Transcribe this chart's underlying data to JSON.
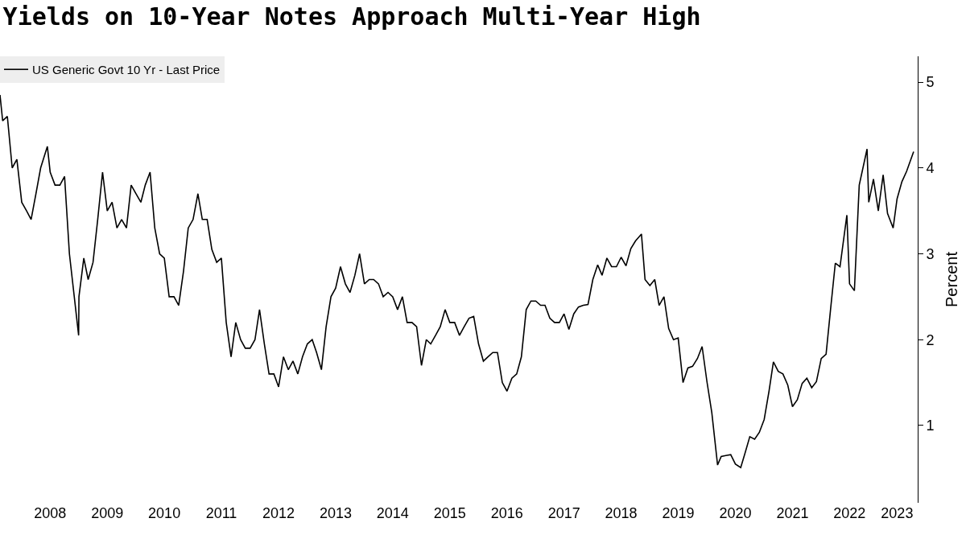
{
  "chart_data": {
    "type": "line",
    "title": "Yields on 10-Year Notes Approach Multi-Year High",
    "ylabel": "Percent",
    "x": [
      "2007-08-15",
      "2007-09",
      "2007-10",
      "2007-11",
      "2007-12",
      "2008-01",
      "2008-02",
      "2008-03",
      "2008-04",
      "2008-05",
      "2008-06-13",
      "2008-07",
      "2008-08",
      "2008-09",
      "2008-10",
      "2008-11",
      "2008-12-30",
      "2009-01",
      "2009-02",
      "2009-03",
      "2009-04",
      "2009-05",
      "2009-06",
      "2009-07",
      "2009-08",
      "2009-09",
      "2009-10",
      "2009-11",
      "2009-12",
      "2010-01",
      "2010-02",
      "2010-03",
      "2010-04",
      "2010-05",
      "2010-06",
      "2010-07",
      "2010-08",
      "2010-09",
      "2010-10",
      "2010-11",
      "2010-12",
      "2011-01",
      "2011-02",
      "2011-03",
      "2011-04",
      "2011-05",
      "2011-06",
      "2011-07",
      "2011-08",
      "2011-09",
      "2011-10",
      "2011-11",
      "2011-12",
      "2012-01",
      "2012-02",
      "2012-03",
      "2012-04",
      "2012-05",
      "2012-06",
      "2012-07",
      "2012-08",
      "2012-09",
      "2012-10",
      "2012-11",
      "2012-12",
      "2013-01",
      "2013-02",
      "2013-03",
      "2013-04",
      "2013-05",
      "2013-06",
      "2013-07",
      "2013-08",
      "2013-09",
      "2013-10",
      "2013-11",
      "2013-12",
      "2014-01",
      "2014-02",
      "2014-03",
      "2014-04",
      "2014-05",
      "2014-06",
      "2014-07",
      "2014-08",
      "2014-09",
      "2014-10",
      "2014-11",
      "2014-12",
      "2015-01",
      "2015-02",
      "2015-03",
      "2015-04",
      "2015-05",
      "2015-06",
      "2015-07",
      "2015-08",
      "2015-09",
      "2015-10",
      "2015-11",
      "2015-12",
      "2016-01",
      "2016-02",
      "2016-03",
      "2016-04",
      "2016-05",
      "2016-06",
      "2016-07",
      "2016-08",
      "2016-09",
      "2016-10",
      "2016-11",
      "2016-12",
      "2017-01",
      "2017-02",
      "2017-03",
      "2017-04",
      "2017-05",
      "2017-06",
      "2017-07",
      "2017-08",
      "2017-09",
      "2017-10",
      "2017-11",
      "2017-12",
      "2018-01",
      "2018-02",
      "2018-03",
      "2018-04",
      "2018-05",
      "2018-06",
      "2018-07",
      "2018-08",
      "2018-09",
      "2018-10",
      "2018-11-08",
      "2018-12",
      "2019-01",
      "2019-02",
      "2019-03",
      "2019-04",
      "2019-05",
      "2019-06",
      "2019-07",
      "2019-08",
      "2019-09",
      "2019-10",
      "2019-11",
      "2019-12",
      "2020-01",
      "2020-02",
      "2020-03-09",
      "2020-04",
      "2020-05",
      "2020-06",
      "2020-07",
      "2020-08-04",
      "2020-09",
      "2020-10",
      "2020-11",
      "2020-12",
      "2021-01",
      "2021-02",
      "2021-03",
      "2021-04",
      "2021-05",
      "2021-06",
      "2021-07",
      "2021-08",
      "2021-09",
      "2021-10",
      "2021-11",
      "2021-12",
      "2022-01",
      "2022-02",
      "2022-03",
      "2022-04",
      "2022-05",
      "2022-06-14",
      "2022-07",
      "2022-08-01",
      "2022-09",
      "2022-10-21",
      "2022-11",
      "2022-12",
      "2023-01",
      "2023-02",
      "2023-03",
      "2023-04-06",
      "2023-05",
      "2023-06",
      "2023-07",
      "2023-08-15"
    ],
    "series": [
      {
        "name": "US Generic Govt 10 Yr - Last Price",
        "color": "#000000",
        "values": [
          4.85,
          4.55,
          4.6,
          4.0,
          4.1,
          3.6,
          3.5,
          3.4,
          3.7,
          4.0,
          4.25,
          3.95,
          3.8,
          3.8,
          3.9,
          3.0,
          2.05,
          2.5,
          2.95,
          2.7,
          2.9,
          3.4,
          3.95,
          3.5,
          3.6,
          3.3,
          3.4,
          3.3,
          3.8,
          3.7,
          3.6,
          3.8,
          3.95,
          3.3,
          3.0,
          2.95,
          2.5,
          2.5,
          2.4,
          2.8,
          3.3,
          3.4,
          3.7,
          3.4,
          3.4,
          3.05,
          2.9,
          2.95,
          2.2,
          1.8,
          2.2,
          2.0,
          1.9,
          1.9,
          2.0,
          2.35,
          1.95,
          1.6,
          1.6,
          1.45,
          1.8,
          1.65,
          1.75,
          1.6,
          1.8,
          1.95,
          2.0,
          1.85,
          1.65,
          2.15,
          2.5,
          2.6,
          2.85,
          2.65,
          2.55,
          2.75,
          3.0,
          2.65,
          2.7,
          2.7,
          2.65,
          2.5,
          2.55,
          2.5,
          2.35,
          2.5,
          2.2,
          2.2,
          2.15,
          1.7,
          2.0,
          1.95,
          2.05,
          2.15,
          2.35,
          2.2,
          2.2,
          2.05,
          2.15,
          2.25,
          2.27,
          1.95,
          1.75,
          1.8,
          1.85,
          1.85,
          1.5,
          1.4,
          1.55,
          1.6,
          1.8,
          2.35,
          2.45,
          2.45,
          2.4,
          2.4,
          2.25,
          2.2,
          2.2,
          2.3,
          2.12,
          2.3,
          2.38,
          2.4,
          2.41,
          2.7,
          2.87,
          2.75,
          2.95,
          2.85,
          2.85,
          2.96,
          2.86,
          3.06,
          3.15,
          3.23,
          2.7,
          2.63,
          2.7,
          2.4,
          2.5,
          2.13,
          2.0,
          2.02,
          1.5,
          1.67,
          1.69,
          1.78,
          1.92,
          1.51,
          1.15,
          0.54,
          0.64,
          0.65,
          0.66,
          0.55,
          0.51,
          0.68,
          0.87,
          0.84,
          0.92,
          1.07,
          1.4,
          1.74,
          1.63,
          1.6,
          1.47,
          1.22,
          1.3,
          1.49,
          1.55,
          1.44,
          1.51,
          1.78,
          1.83,
          2.34,
          2.89,
          2.85,
          3.45,
          2.65,
          2.57,
          3.8,
          4.22,
          3.6,
          3.87,
          3.5,
          3.92,
          3.47,
          3.3,
          3.64,
          3.84,
          3.96,
          4.19
        ]
      }
    ],
    "xlim": [
      "2007-08-15",
      "2023-09-10"
    ],
    "xticks": [
      {
        "value": "2008-07-01",
        "label": "2008"
      },
      {
        "value": "2009-07-01",
        "label": "2009"
      },
      {
        "value": "2010-07-01",
        "label": "2010"
      },
      {
        "value": "2011-07-01",
        "label": "2011"
      },
      {
        "value": "2012-07-01",
        "label": "2012"
      },
      {
        "value": "2013-07-01",
        "label": "2013"
      },
      {
        "value": "2014-07-01",
        "label": "2014"
      },
      {
        "value": "2015-07-01",
        "label": "2015"
      },
      {
        "value": "2016-07-01",
        "label": "2016"
      },
      {
        "value": "2017-07-01",
        "label": "2017"
      },
      {
        "value": "2018-07-01",
        "label": "2018"
      },
      {
        "value": "2019-07-01",
        "label": "2019"
      },
      {
        "value": "2020-07-01",
        "label": "2020"
      },
      {
        "value": "2021-07-01",
        "label": "2021"
      },
      {
        "value": "2022-07-01",
        "label": "2022"
      },
      {
        "value": "2023-05-01",
        "label": "2023"
      }
    ],
    "ylim": [
      0.1,
      5.3
    ],
    "yticks": [
      1,
      2,
      3,
      4,
      5
    ],
    "grid": false,
    "legend": "top left",
    "marker": "none",
    "line_style": "solid"
  }
}
